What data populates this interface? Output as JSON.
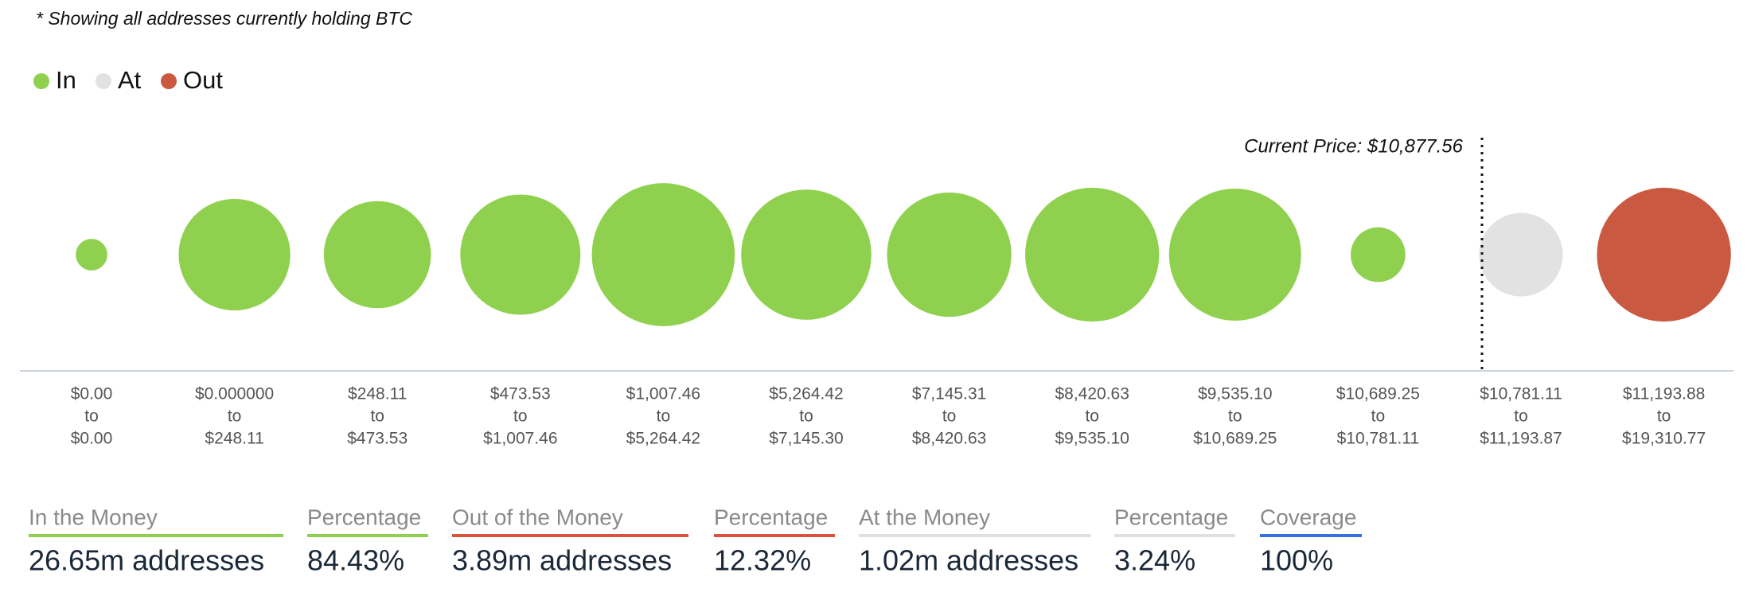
{
  "chart_data": {
    "type": "bubble",
    "note": "* Showing all addresses currently holding BTC",
    "legend": [
      {
        "name": "In",
        "color": "#8fd14f"
      },
      {
        "name": "At",
        "color": "#e2e2e2"
      },
      {
        "name": "Out",
        "color": "#c95a41"
      }
    ],
    "categories": [
      [
        "$0.00",
        "to",
        "$0.00"
      ],
      [
        "$0.000000",
        "to",
        "$248.11"
      ],
      [
        "$248.11",
        "to",
        "$473.53"
      ],
      [
        "$473.53",
        "to",
        "$1,007.46"
      ],
      [
        "$1,007.46",
        "to",
        "$5,264.42"
      ],
      [
        "$5,264.42",
        "to",
        "$7,145.30"
      ],
      [
        "$7,145.31",
        "to",
        "$8,420.63"
      ],
      [
        "$8,420.63",
        "to",
        "$9,535.10"
      ],
      [
        "$9,535.10",
        "to",
        "$10,689.25"
      ],
      [
        "$10,689.25",
        "to",
        "$10,781.11"
      ],
      [
        "$10,781.11",
        "to",
        "$11,193.87"
      ],
      [
        "$11,193.88",
        "to",
        "$19,310.77"
      ]
    ],
    "values": [
      2,
      25,
      23,
      29,
      41,
      34,
      31,
      36,
      35,
      6,
      14,
      36
    ],
    "colors": [
      "#8fd14f",
      "#8fd14f",
      "#8fd14f",
      "#8fd14f",
      "#8fd14f",
      "#8fd14f",
      "#8fd14f",
      "#8fd14f",
      "#8fd14f",
      "#8fd14f",
      "#e2e2e2",
      "#c95a41"
    ],
    "annotation": "Current Price: $10,877.56",
    "summary": [
      {
        "label": "In the Money",
        "value": "26.65m addresses",
        "color": "#8fd14f"
      },
      {
        "label": "Percentage",
        "value": "84.43%",
        "color": "#8fd14f"
      },
      {
        "label": "Out of the Money",
        "value": "3.89m addresses",
        "color": "#d9533b"
      },
      {
        "label": "Percentage",
        "value": "12.32%",
        "color": "#d9533b"
      },
      {
        "label": "At the Money",
        "value": "1.02m addresses",
        "color": "#e0e0e0"
      },
      {
        "label": "Percentage",
        "value": "3.24%",
        "color": "#e0e0e0"
      },
      {
        "label": "Coverage",
        "value": "100%",
        "color": "#3a6fe0"
      }
    ]
  }
}
